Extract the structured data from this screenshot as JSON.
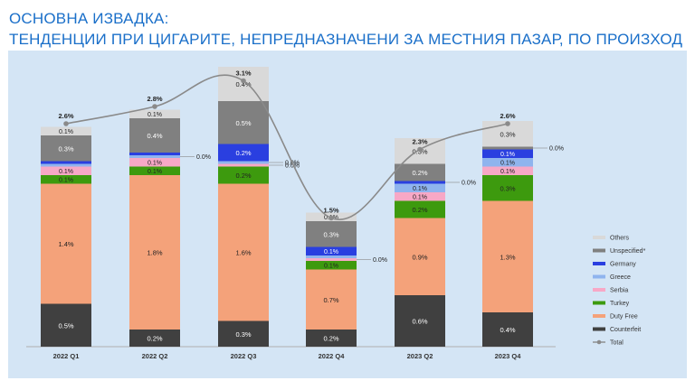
{
  "heading": {
    "line1": "ОСНОВНА ИЗВАДКА:",
    "line2": "ТЕНДЕНЦИИ ПРИ ЦИГАРИТЕ, НЕПРЕДНАЗНАЧЕНИ ЗА МЕСТНИЯ ПАЗАР, ПО ПРОИЗХОД"
  },
  "chart_data": {
    "type": "bar",
    "stacked": true,
    "unit": "%",
    "categories": [
      "2022 Q1",
      "2022 Q2",
      "2022 Q3",
      "2022 Q4",
      "2023 Q2",
      "2023 Q4"
    ],
    "series": [
      {
        "name": "Counterfeit",
        "color": "#404040",
        "values": [
          0.5,
          0.2,
          0.3,
          0.2,
          0.6,
          0.4
        ],
        "labels": [
          "0.5%",
          "0.2%",
          "0.3%",
          "0.2%",
          "0.6%",
          "0.4%"
        ]
      },
      {
        "name": "Duty Free",
        "color": "#f4a27a",
        "values": [
          1.4,
          1.8,
          1.6,
          0.7,
          0.9,
          1.3
        ],
        "labels": [
          "1.4%",
          "1.8%",
          "1.6%",
          "0.7%",
          "0.9%",
          "1.3%"
        ]
      },
      {
        "name": "Turkey",
        "color": "#3d9a0e",
        "values": [
          0.1,
          0.1,
          0.2,
          0.1,
          0.2,
          0.3
        ],
        "labels": [
          "0.1%",
          "0.1%",
          "0.2%",
          "0.1%",
          "0.2%",
          "0.3%"
        ]
      },
      {
        "name": "Serbia",
        "color": "#f7a8c6",
        "values": [
          0.1,
          0.1,
          0.0,
          0.0,
          0.1,
          0.1
        ],
        "labels": [
          "0.1%",
          "0.1%",
          "0.0%",
          "0.0%",
          "0.1%",
          "0.1%"
        ]
      },
      {
        "name": "Greece",
        "color": "#8fb4ee",
        "values": [
          0.0,
          0.0,
          0.0,
          0.0,
          0.1,
          0.1
        ],
        "labels": [
          "",
          "0.0%",
          "0.0%",
          "",
          "0.1%",
          "0.1%"
        ]
      },
      {
        "name": "Germany",
        "color": "#2a3fe0",
        "values": [
          0.0,
          0.0,
          0.2,
          0.1,
          0.0,
          0.1
        ],
        "labels": [
          "",
          "",
          "0.2%",
          "0.1%",
          "0.0%",
          "0.1%"
        ]
      },
      {
        "name": "Unspecified*",
        "color": "#808080",
        "values": [
          0.3,
          0.4,
          0.5,
          0.3,
          0.2,
          0.0
        ],
        "labels": [
          "0.3%",
          "0.4%",
          "0.5%",
          "0.3%",
          "0.2%",
          "0.0%"
        ]
      },
      {
        "name": "Others",
        "color": "#d9d9d9",
        "values": [
          0.1,
          0.1,
          0.4,
          0.1,
          0.3,
          0.3
        ],
        "labels": [
          "0.1%",
          "0.1%",
          "0.4%",
          "0.1%",
          "0.3%",
          "0.3%"
        ]
      }
    ],
    "total": {
      "name": "Total",
      "values": [
        2.6,
        2.8,
        3.1,
        1.5,
        2.3,
        2.6
      ],
      "labels": [
        "2.6%",
        "2.8%",
        "3.1%",
        "1.5%",
        "2.3%",
        "2.6%"
      ]
    },
    "legend_order": [
      "Others",
      "Unspecified*",
      "Germany",
      "Greece",
      "Serbia",
      "Turkey",
      "Duty Free",
      "Counterfeit",
      "Total"
    ],
    "legend_position": "right",
    "grid": false,
    "ylim": [
      0,
      3.1
    ]
  }
}
